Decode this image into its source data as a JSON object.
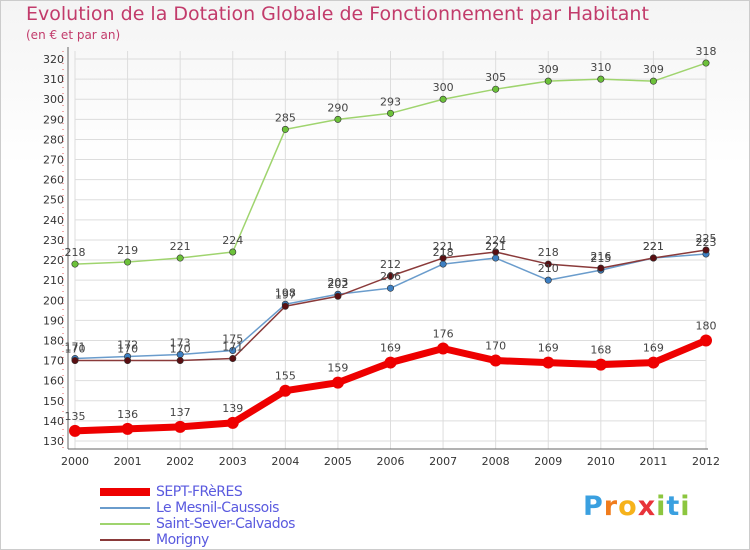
{
  "title": "Evolution de la Dotation Globale de Fonctionnement par Habitant",
  "subtitle": "(en € et par an)",
  "logo": {
    "letters": [
      "P",
      "r",
      "o",
      "x",
      "i",
      "t",
      "i"
    ],
    "colors": [
      "#3aa0e0",
      "#f07c1c",
      "#f6b21b",
      "#e8333a",
      "#8cc63f",
      "#3aa0e0",
      "#8cc63f"
    ]
  },
  "chart_data": {
    "type": "line",
    "title": "Evolution de la Dotation Globale de Fonctionnement par Habitant",
    "subtitle": "(en € et par an)",
    "xlabel": "",
    "ylabel": "",
    "ylim": [
      126,
      324
    ],
    "yticks": [
      130,
      140,
      150,
      160,
      170,
      180,
      190,
      200,
      210,
      220,
      230,
      240,
      250,
      260,
      270,
      280,
      290,
      300,
      310,
      320
    ],
    "x": [
      "2000",
      "2001",
      "2002",
      "2003",
      "2004",
      "2005",
      "2006",
      "2007",
      "2008",
      "2009",
      "2010",
      "2011",
      "2012"
    ],
    "grid": true,
    "legend_position": "bottom-left",
    "series": [
      {
        "name": "SEPT-FRèRES",
        "color": "#ee0000",
        "marker_color": "#ee0000",
        "thick": true,
        "values": [
          135,
          136,
          137,
          139,
          155,
          159,
          169,
          176,
          170,
          169,
          168,
          169,
          180
        ],
        "labels": [
          "135",
          "136",
          "137",
          "139",
          "155",
          "159",
          "169",
          "176",
          "170",
          "169",
          "168",
          "169",
          "180"
        ]
      },
      {
        "name": "Le Mesnil-Caussois",
        "color": "#6a9ccc",
        "marker_color": "#3d7fc2",
        "thick": false,
        "values": [
          171,
          172,
          173,
          175,
          198,
          203,
          206,
          218,
          221,
          210,
          215,
          221,
          223
        ],
        "labels": [
          "171",
          "172",
          "173",
          "175",
          "198",
          "203",
          "206",
          "218",
          "221",
          "210",
          "215",
          "221",
          "223"
        ]
      },
      {
        "name": "Saint-Sever-Calvados",
        "color": "#9fd46e",
        "marker_color": "#6cc13a",
        "thick": false,
        "values": [
          218,
          219,
          221,
          224,
          285,
          290,
          293,
          300,
          305,
          309,
          310,
          309,
          318
        ],
        "labels": [
          "218",
          "219",
          "221",
          "224",
          "285",
          "290",
          "293",
          "300",
          "305",
          "309",
          "310",
          "309",
          "318"
        ]
      },
      {
        "name": "Morigny",
        "color": "#8a3a3a",
        "marker_color": "#5a0f12",
        "thick": false,
        "values": [
          170,
          170,
          170,
          171,
          197,
          202,
          212,
          221,
          224,
          218,
          216,
          221,
          225
        ],
        "labels": [
          "170",
          "170",
          "170",
          "171",
          "197",
          "202",
          "212",
          "221",
          "224",
          "218",
          "216",
          "221",
          "225"
        ]
      }
    ]
  }
}
